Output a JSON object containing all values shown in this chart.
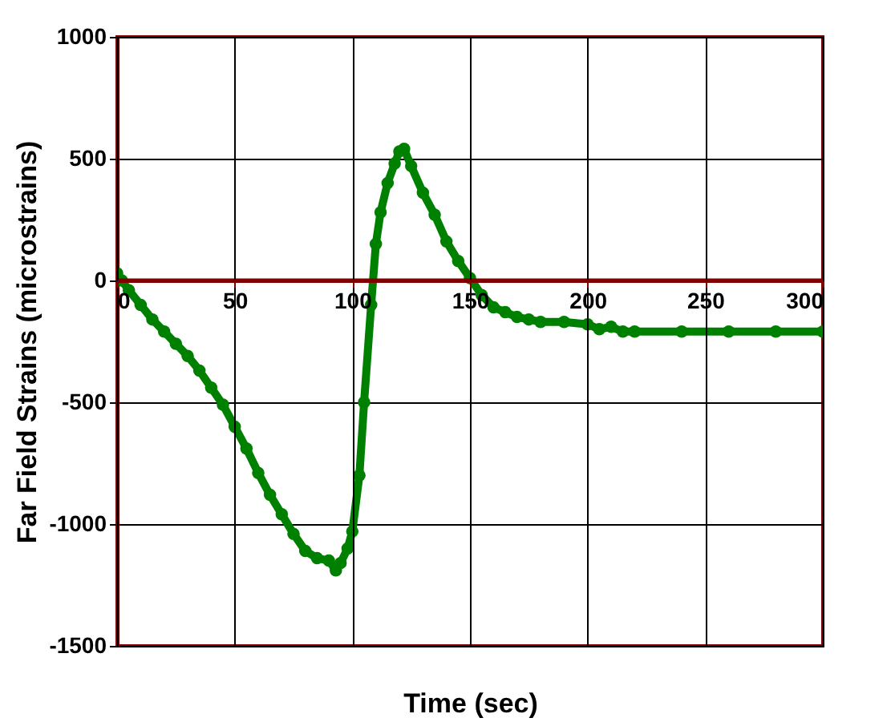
{
  "chart_data": {
    "type": "line",
    "xlabel": "Time (sec)",
    "ylabel": "Far Field Strains (microstrains)",
    "x": [
      0,
      2,
      5,
      10,
      15,
      20,
      25,
      30,
      35,
      40,
      45,
      50,
      55,
      60,
      65,
      70,
      75,
      80,
      85,
      90,
      93,
      95,
      98,
      100,
      103,
      105,
      108,
      110,
      112,
      115,
      118,
      120,
      122,
      125,
      130,
      135,
      140,
      145,
      150,
      155,
      160,
      165,
      170,
      175,
      180,
      190,
      200,
      205,
      210,
      215,
      220,
      240,
      260,
      280,
      300
    ],
    "series": [
      {
        "color": "#008000",
        "values": [
          30,
          0,
          -40,
          -100,
          -160,
          -210,
          -260,
          -310,
          -370,
          -440,
          -510,
          -600,
          -690,
          -790,
          -880,
          -960,
          -1040,
          -1110,
          -1140,
          -1150,
          -1190,
          -1160,
          -1100,
          -1030,
          -800,
          -500,
          -100,
          150,
          280,
          400,
          480,
          530,
          540,
          470,
          360,
          270,
          160,
          80,
          10,
          -60,
          -110,
          -130,
          -150,
          -160,
          -170,
          -170,
          -180,
          -200,
          -190,
          -210,
          -210,
          -210,
          -210,
          -210,
          -210
        ]
      }
    ],
    "xlim": [
      0,
      300
    ],
    "xticks": [
      0,
      50,
      100,
      150,
      200,
      250,
      300
    ],
    "ylim": [
      -1500,
      1000
    ],
    "yticks": [
      {
        "value": -1500,
        "label": "-1500"
      },
      {
        "value": -1000,
        "label": "-1000"
      },
      {
        "value": -500,
        "label": "-500"
      },
      0,
      {
        "value": 500,
        "label": "500"
      },
      {
        "value": 1000,
        "label": "1000"
      }
    ],
    "grid": true,
    "marker": "circle",
    "line_style": "solid",
    "ref_lines": [
      {
        "axis": "y",
        "value": 0,
        "color": "#800000"
      }
    ]
  }
}
